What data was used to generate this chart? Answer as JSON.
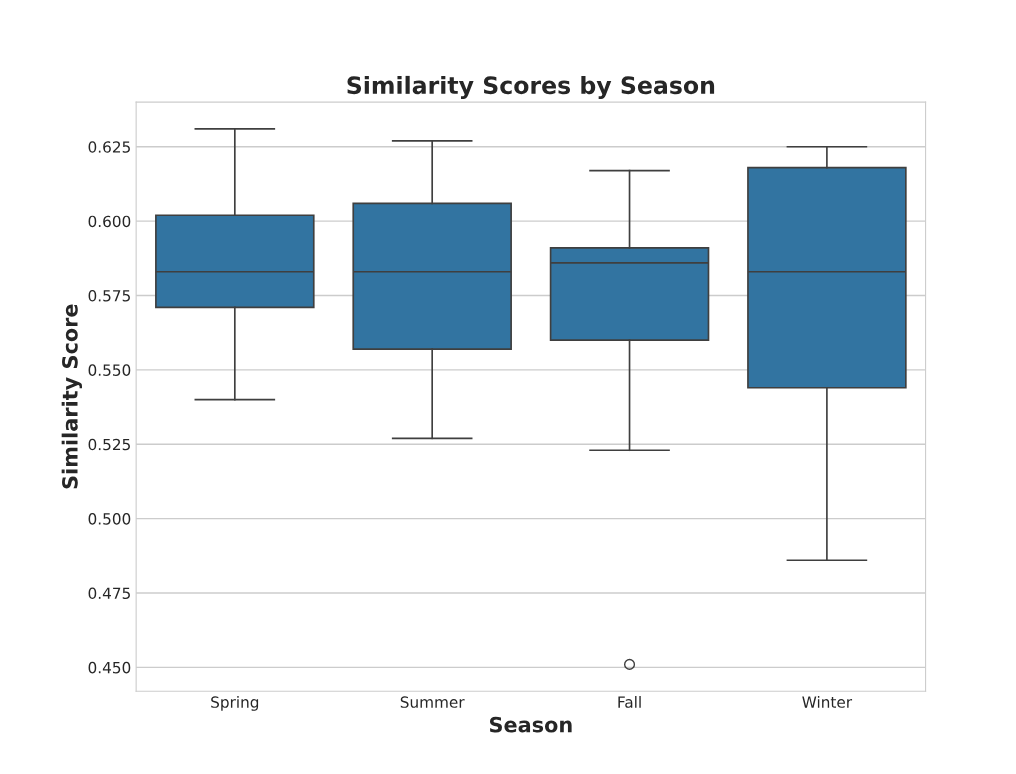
{
  "chart_data": {
    "type": "box",
    "title": "Similarity Scores by Season",
    "xlabel": "Season",
    "ylabel": "Similarity Score",
    "categories": [
      "Spring",
      "Summer",
      "Fall",
      "Winter"
    ],
    "color": "#3274a1",
    "boxes": [
      {
        "low": 0.54,
        "q1": 0.571,
        "median": 0.583,
        "q3": 0.602,
        "high": 0.631
      },
      {
        "low": 0.527,
        "q1": 0.557,
        "median": 0.583,
        "q3": 0.606,
        "high": 0.627
      },
      {
        "low": 0.523,
        "q1": 0.56,
        "median": 0.586,
        "q3": 0.591,
        "high": 0.617,
        "outliers": [
          0.451
        ]
      },
      {
        "low": 0.486,
        "q1": 0.544,
        "median": 0.583,
        "q3": 0.618,
        "high": 0.625
      }
    ],
    "ylim": [
      0.442,
      0.64
    ],
    "yticks": [
      {
        "value": 0.45,
        "label": "0.450"
      },
      {
        "value": 0.475,
        "label": "0.475"
      },
      {
        "value": 0.5,
        "label": "0.500"
      },
      {
        "value": 0.525,
        "label": "0.525"
      },
      {
        "value": 0.55,
        "label": "0.550"
      },
      {
        "value": 0.575,
        "label": "0.575"
      },
      {
        "value": 0.6,
        "label": "0.600"
      },
      {
        "value": 0.625,
        "label": "0.625"
      }
    ],
    "grid": "y",
    "legend": false
  }
}
